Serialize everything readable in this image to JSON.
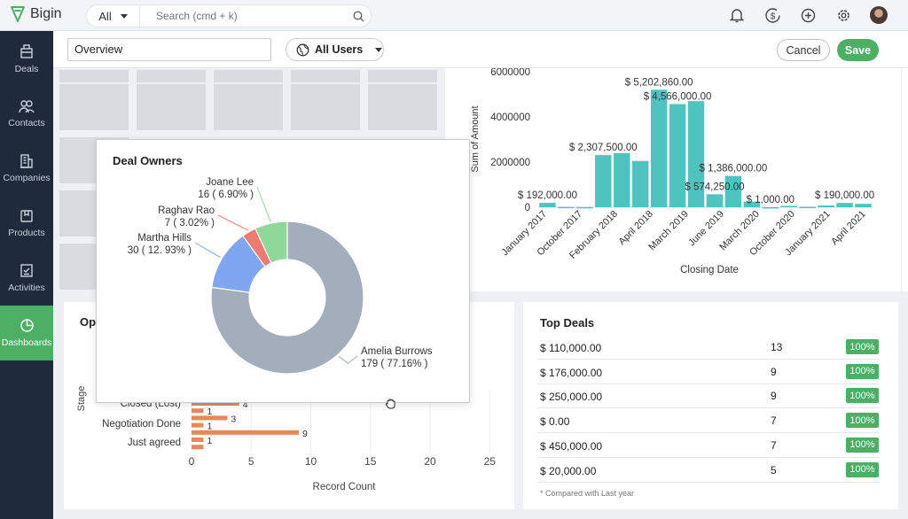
{
  "app": {
    "name": "Bigin",
    "brand_color": "#4caf63"
  },
  "search": {
    "scope": "All",
    "placeholder": "Search (cmd + k)"
  },
  "topbar_icons": [
    "bell-icon",
    "dollar-refresh-icon",
    "plus-circle-icon",
    "gear-icon"
  ],
  "sidebar": {
    "items": [
      {
        "label": "Deals",
        "icon": "deals-icon"
      },
      {
        "label": "Contacts",
        "icon": "contacts-icon"
      },
      {
        "label": "Companies",
        "icon": "companies-icon"
      },
      {
        "label": "Products",
        "icon": "products-icon"
      },
      {
        "label": "Activities",
        "icon": "activities-icon"
      },
      {
        "label": "Dashboards",
        "icon": "dashboards-icon",
        "active": true
      }
    ]
  },
  "toolbar": {
    "dashboard_name": "Overview",
    "users_filter": "All Users",
    "cancel_label": "Cancel",
    "save_label": "Save"
  },
  "amount_chart": {
    "ylabel": "Sum of Amount",
    "xlabel": "Closing Date",
    "color": "#4fc3c0"
  },
  "deal_owners": {
    "title": "Deal Owners",
    "slices": [
      {
        "name": "Amelia Burrows",
        "value": 179,
        "label": "179 ( 77.16% )",
        "color": "#a4adbb"
      },
      {
        "name": "Martha Hills",
        "value": 30,
        "label": "30 ( 12. 93% )",
        "color": "#7ea7ef"
      },
      {
        "name": "Raghav Rao",
        "value": 7,
        "label": "7 ( 3.02% )",
        "color": "#ec7b72"
      },
      {
        "name": "Joane Lee",
        "value": 16,
        "label": "16 ( 6.90% )",
        "color": "#8fd89a"
      }
    ]
  },
  "stage_chart": {
    "title_partial": "Op",
    "ylabel": "Stage",
    "xlabel": "Record Count",
    "ticks": [
      "0",
      "5",
      "10",
      "15",
      "20",
      "25"
    ],
    "partial_label": "Closed (Lost)",
    "categories": [
      "Negotiation Done",
      "Just agreed"
    ],
    "color": "#e8875a"
  },
  "top_deals": {
    "title": "Top Deals",
    "rows": [
      {
        "amount": "$ 110,000.00",
        "count": "13",
        "pct": "100%"
      },
      {
        "amount": "$ 176,000.00",
        "count": "9",
        "pct": "100%"
      },
      {
        "amount": "$ 250,000.00",
        "count": "9",
        "pct": "100%"
      },
      {
        "amount": "$ 0.00",
        "count": "7",
        "pct": "100%"
      },
      {
        "amount": "$ 450,000.00",
        "count": "7",
        "pct": "100%"
      },
      {
        "amount": "$ 20,000.00",
        "count": "5",
        "pct": "100%"
      }
    ],
    "footnote": "* Compared with Last year"
  },
  "chart_data": [
    {
      "type": "bar",
      "title": "",
      "xlabel": "Closing Date",
      "ylabel": "Sum of Amount",
      "ylim": [
        0,
        6000000
      ],
      "yticks": [
        "0",
        "2000000",
        "4000000",
        "6000000"
      ],
      "x_tick_labels": [
        "January 2017",
        "October 2017",
        "February 2018",
        "April 2018",
        "March 2019",
        "June 2019",
        "March 2020",
        "October 2020",
        "January 2021",
        "April 2021"
      ],
      "values": [
        192000,
        15000,
        8000,
        2307500,
        2400000,
        2050000,
        5202860,
        4566000,
        4700000,
        574250,
        1386000,
        250000,
        1000,
        60000,
        20000,
        80000,
        190000,
        150000
      ],
      "data_labels": [
        {
          "text": "$ 192,000.00",
          "bar": 0
        },
        {
          "text": "$ 2,307,500.00",
          "bar": 3
        },
        {
          "text": "$ 5,202,860.00",
          "bar": 6
        },
        {
          "text": "$ 4,566,000.00",
          "bar": 7
        },
        {
          "text": "$ 1,386,000.00",
          "bar": 10
        },
        {
          "text": "$ 574,250.00",
          "bar": 9
        },
        {
          "text": "$ 1,000.00",
          "bar": 12
        },
        {
          "text": "$ 190,000.00",
          "bar": 16
        }
      ]
    },
    {
      "type": "pie",
      "title": "Deal Owners",
      "categories": [
        "Amelia Burrows",
        "Martha Hills",
        "Raghav Rao",
        "Joane Lee"
      ],
      "values": [
        179,
        30,
        7,
        16
      ]
    },
    {
      "type": "bar",
      "orientation": "horizontal",
      "xlabel": "Record Count",
      "ylabel": "Stage",
      "xlim": [
        0,
        25
      ],
      "bars": [
        {
          "value": 4,
          "label": "4"
        },
        {
          "value": 1,
          "label": "1"
        },
        {
          "value": 3,
          "label": "3"
        },
        {
          "value": 1,
          "label": "1"
        },
        {
          "value": 9,
          "label": "9"
        },
        {
          "value": 1,
          "label": "1"
        },
        {
          "value": 1,
          "label": ""
        }
      ]
    }
  ]
}
